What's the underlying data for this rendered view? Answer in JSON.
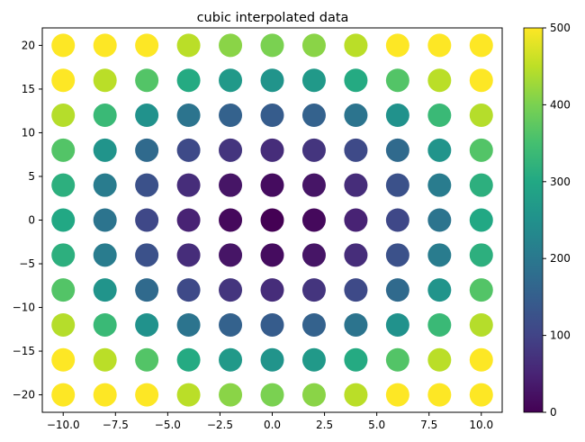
{
  "chart_data": {
    "type": "scatter",
    "title": "cubic interpolated data",
    "xlabel": "",
    "ylabel": "",
    "xlim": [
      -11,
      11
    ],
    "ylim": [
      -22,
      22
    ],
    "x_ticks": [
      -10,
      -7.5,
      -5,
      -2.5,
      0,
      2.5,
      5,
      7.5,
      10
    ],
    "x_tick_labels": [
      "−10.0",
      "−7.5",
      "−5.0",
      "−2.5",
      "0.0",
      "2.5",
      "5.0",
      "7.5",
      "10.0"
    ],
    "y_ticks": [
      -20,
      -15,
      -10,
      -5,
      0,
      5,
      10,
      15,
      20
    ],
    "y_tick_labels": [
      "−20",
      "−15",
      "−10",
      "−5",
      "0",
      "5",
      "10",
      "15",
      "20"
    ],
    "x": [
      -10,
      -8,
      -6,
      -4,
      -2,
      0,
      2,
      4,
      6,
      8,
      10
    ],
    "y": [
      20,
      16,
      12,
      8,
      4,
      0,
      -4,
      -8,
      -12,
      -16,
      -20
    ],
    "values_formula": "value = 3*x^2 + y^2 at each grid point (x, y)",
    "colorbar": {
      "range": [
        0,
        500
      ],
      "ticks": [
        0,
        100,
        200,
        300,
        400,
        500
      ],
      "tick_labels": [
        "0",
        "100",
        "200",
        "300",
        "400",
        "500"
      ],
      "colormap": "viridis"
    },
    "grid": false,
    "legend": "none"
  }
}
